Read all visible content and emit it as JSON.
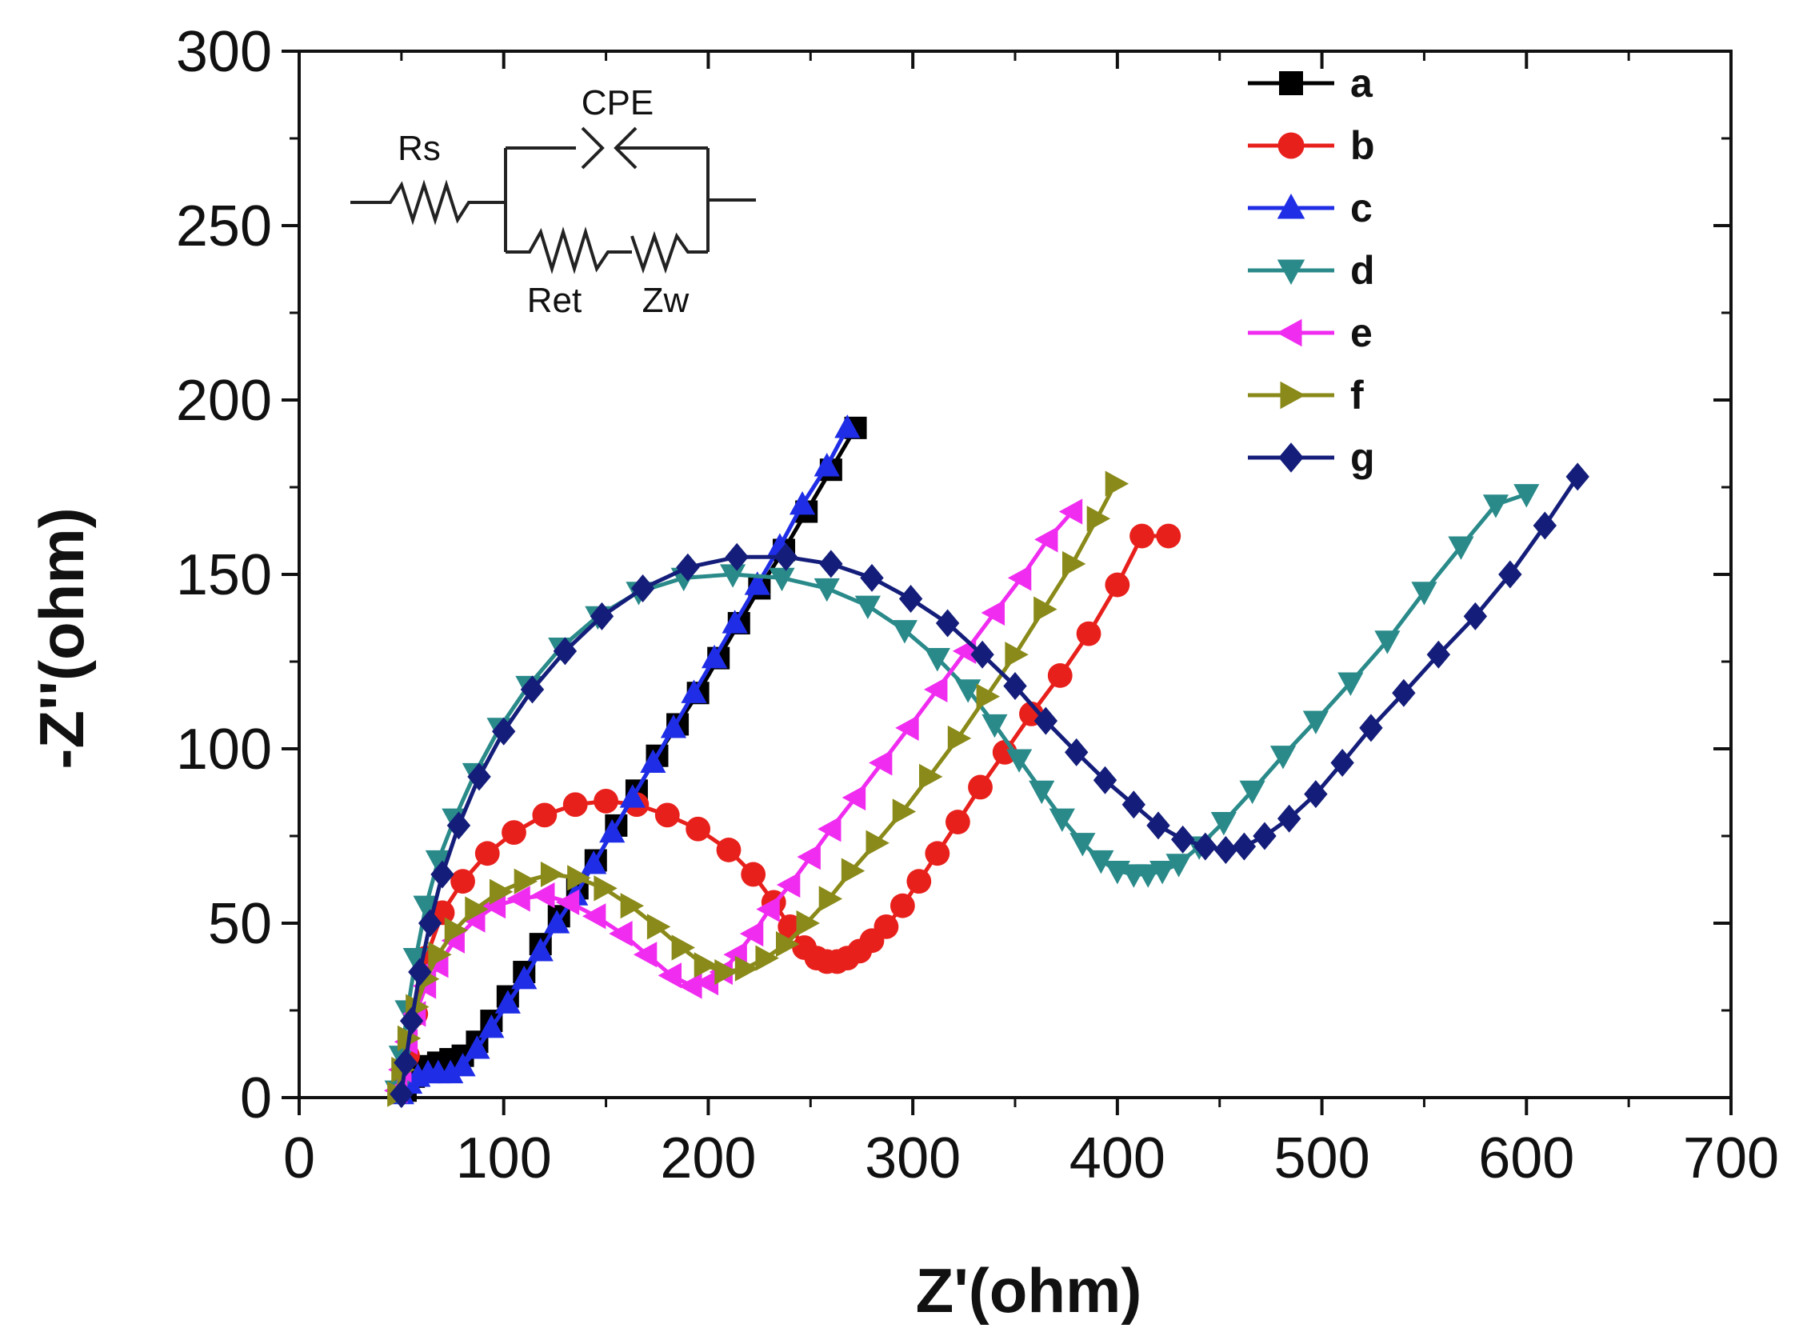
{
  "chart_data": {
    "type": "scatter",
    "xlabel": "Z'(ohm)",
    "ylabel": "-Z''(ohm)",
    "xlim": [
      0,
      700
    ],
    "ylim": [
      0,
      300
    ],
    "xticks": [
      0,
      100,
      200,
      300,
      400,
      500,
      600,
      700
    ],
    "yticks": [
      0,
      50,
      100,
      150,
      200,
      250,
      300
    ],
    "grid": false,
    "legend_position": "top-right",
    "inset": {
      "labels": {
        "rs": "Rs",
        "cpe": "CPE",
        "ret": "Ret",
        "zw": "Zw"
      }
    },
    "series": [
      {
        "name": "a",
        "color": "#000000",
        "marker": "square",
        "x": [
          52,
          56,
          62,
          68,
          74,
          80,
          87,
          94,
          102,
          110,
          118,
          127,
          136,
          145,
          155,
          165,
          175,
          185,
          195,
          205,
          215,
          225,
          237,
          248,
          260,
          272
        ],
        "y": [
          2,
          6,
          9,
          10,
          11,
          12,
          16,
          22,
          29,
          36,
          44,
          52,
          60,
          68,
          78,
          88,
          98,
          107,
          116,
          126,
          136,
          146,
          157,
          168,
          180,
          192
        ]
      },
      {
        "name": "b",
        "color": "#e8201c",
        "marker": "circle",
        "x": [
          50,
          53,
          57,
          62,
          70,
          80,
          92,
          105,
          120,
          135,
          150,
          165,
          180,
          195,
          210,
          222,
          232,
          240,
          247,
          253,
          258,
          263,
          268,
          274,
          280,
          287,
          295,
          303,
          312,
          322,
          333,
          345,
          358,
          372,
          386,
          400,
          412,
          425
        ],
        "y": [
          3,
          12,
          24,
          40,
          53,
          62,
          70,
          76,
          81,
          84,
          85,
          84,
          81,
          77,
          71,
          64,
          56,
          49,
          43,
          40,
          39,
          39,
          40,
          42,
          45,
          49,
          55,
          62,
          70,
          79,
          89,
          99,
          110,
          121,
          133,
          147,
          161,
          161
        ]
      },
      {
        "name": "c",
        "color": "#1f2de6",
        "marker": "triangle-up",
        "x": [
          50,
          54,
          58,
          63,
          68,
          74,
          80,
          87,
          94,
          102,
          110,
          118,
          126,
          135,
          144,
          153,
          163,
          173,
          183,
          193,
          203,
          213,
          224,
          235,
          246,
          258,
          268
        ],
        "y": [
          1,
          4,
          6,
          7,
          7,
          7,
          9,
          14,
          20,
          27,
          34,
          42,
          50,
          58,
          67,
          76,
          86,
          96,
          106,
          116,
          126,
          136,
          147,
          158,
          170,
          181,
          192
        ]
      },
      {
        "name": "d",
        "color": "#2a8a8a",
        "marker": "triangle-down",
        "x": [
          48,
          50,
          53,
          57,
          62,
          68,
          76,
          86,
          98,
          112,
          128,
          146,
          166,
          188,
          212,
          236,
          258,
          278,
          296,
          312,
          327,
          340,
          352,
          363,
          373,
          383,
          392,
          400,
          408,
          415,
          422,
          430,
          440,
          452,
          466,
          481,
          497,
          514,
          532,
          550,
          568,
          585,
          600
        ],
        "y": [
          2,
          12,
          25,
          40,
          55,
          68,
          80,
          93,
          106,
          118,
          129,
          138,
          145,
          149,
          150,
          149,
          146,
          141,
          134,
          126,
          117,
          107,
          97,
          88,
          80,
          73,
          68,
          65,
          64,
          64,
          65,
          67,
          72,
          79,
          88,
          98,
          108,
          119,
          131,
          145,
          158,
          170,
          173
        ]
      },
      {
        "name": "e",
        "color": "#f02cf0",
        "marker": "triangle-left",
        "x": [
          48,
          50,
          53,
          57,
          62,
          68,
          76,
          86,
          96,
          108,
          120,
          132,
          145,
          158,
          170,
          182,
          192,
          200,
          207,
          214,
          222,
          230,
          240,
          250,
          260,
          272,
          285,
          298,
          312,
          326,
          340,
          353,
          366,
          378
        ],
        "y": [
          2,
          8,
          16,
          24,
          32,
          38,
          45,
          51,
          55,
          57,
          58,
          56,
          52,
          47,
          41,
          35,
          32,
          33,
          36,
          41,
          47,
          54,
          61,
          69,
          77,
          86,
          96,
          106,
          117,
          128,
          139,
          149,
          160,
          168
        ]
      },
      {
        "name": "f",
        "color": "#8a8a1a",
        "marker": "triangle-right",
        "x": [
          48,
          50,
          53,
          57,
          62,
          68,
          76,
          86,
          98,
          110,
          123,
          136,
          149,
          162,
          175,
          187,
          198,
          208,
          218,
          228,
          238,
          248,
          259,
          270,
          282,
          295,
          308,
          322,
          336,
          350,
          364,
          378,
          390,
          399
        ],
        "y": [
          1,
          8,
          17,
          26,
          34,
          41,
          48,
          54,
          59,
          62,
          64,
          63,
          60,
          55,
          49,
          43,
          38,
          36,
          37,
          40,
          44,
          50,
          57,
          65,
          73,
          82,
          92,
          103,
          115,
          127,
          140,
          153,
          166,
          176
        ]
      },
      {
        "name": "g",
        "color": "#141e7a",
        "marker": "diamond",
        "x": [
          50,
          52,
          55,
          59,
          64,
          70,
          78,
          88,
          100,
          114,
          130,
          148,
          168,
          190,
          214,
          238,
          260,
          280,
          299,
          317,
          334,
          350,
          365,
          380,
          394,
          408,
          420,
          432,
          443,
          453,
          462,
          472,
          484,
          497,
          510,
          524,
          540,
          557,
          575,
          592,
          609,
          625
        ],
        "y": [
          1,
          10,
          22,
          36,
          50,
          64,
          78,
          92,
          105,
          117,
          128,
          138,
          146,
          152,
          155,
          155,
          153,
          149,
          143,
          136,
          127,
          118,
          108,
          99,
          91,
          84,
          78,
          74,
          72,
          71,
          72,
          75,
          80,
          87,
          96,
          106,
          116,
          127,
          138,
          150,
          164,
          178
        ]
      }
    ]
  }
}
